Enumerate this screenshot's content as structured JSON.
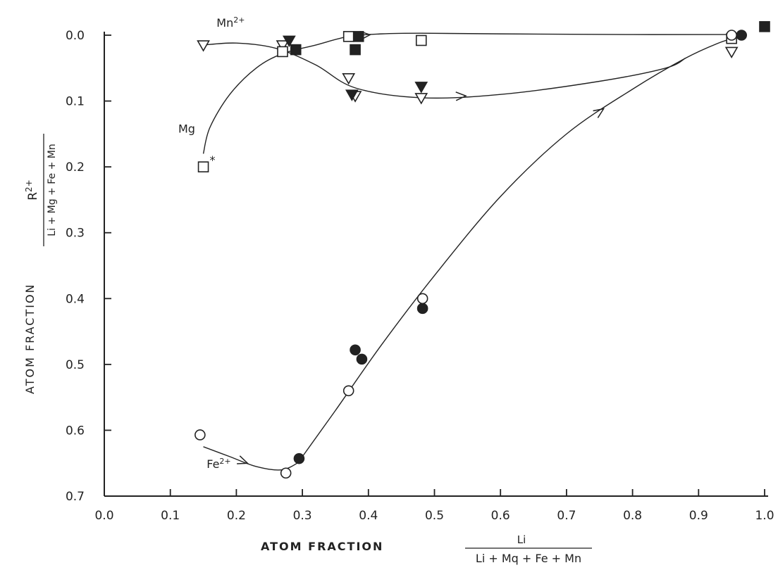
{
  "chart_data": {
    "type": "scatter",
    "title": "",
    "xlabel": {
      "prefix": "ATOM FRACTION",
      "numerator": "Li",
      "denominator": "Li + Mq + Fe + Mn"
    },
    "ylabel": {
      "outer": "ATOM FRACTION",
      "numerator": "R2+",
      "denominator": "Li + Mg + Fe + Mn"
    },
    "xlim": [
      0.0,
      1.0
    ],
    "ylim": [
      0.0,
      0.7
    ],
    "y_axis_inverted": true,
    "x_ticks": [
      "0.0",
      "0.1",
      "0.2",
      "0.3",
      "0.4",
      "0.5",
      "0.6",
      "0.7",
      "0.8",
      "0.9",
      "1.0"
    ],
    "y_ticks": [
      "0.0",
      "0.1",
      "0.2",
      "0.3",
      "0.4",
      "0.5",
      "0.6",
      "0.7"
    ],
    "grid": false,
    "series": [
      {
        "name": "Mn2+",
        "label_text": "Mn",
        "label_sup": "2+",
        "marker": "triangle-down",
        "color": "#222222",
        "open": [
          [
            0.15,
            0.015
          ],
          [
            0.27,
            0.015
          ],
          [
            0.37,
            0.065
          ],
          [
            0.38,
            0.092
          ],
          [
            0.48,
            0.095
          ],
          [
            0.95,
            0.025
          ]
        ],
        "filled": [
          [
            0.28,
            0.008
          ],
          [
            0.375,
            0.09
          ],
          [
            0.48,
            0.078
          ]
        ],
        "trend": [
          [
            0.15,
            0.015
          ],
          [
            0.2,
            0.012
          ],
          [
            0.26,
            0.02
          ],
          [
            0.32,
            0.045
          ],
          [
            0.38,
            0.08
          ],
          [
            0.48,
            0.095
          ],
          [
            0.6,
            0.09
          ],
          [
            0.75,
            0.07
          ],
          [
            0.85,
            0.05
          ],
          [
            0.88,
            0.035
          ]
        ]
      },
      {
        "name": "Mg",
        "label_text": "Mg",
        "label_sup": "",
        "marker": "square",
        "color": "#222222",
        "open": [
          [
            0.15,
            0.2
          ],
          [
            0.27,
            0.025
          ],
          [
            0.37,
            0.002
          ],
          [
            0.48,
            0.008
          ],
          [
            0.95,
            0.005
          ]
        ],
        "filled": [
          [
            0.29,
            0.022
          ],
          [
            0.38,
            0.022
          ],
          [
            0.385,
            0.002
          ],
          [
            1.0,
            -0.013
          ]
        ],
        "trend": [
          [
            0.15,
            0.18
          ],
          [
            0.16,
            0.14
          ],
          [
            0.19,
            0.09
          ],
          [
            0.23,
            0.05
          ],
          [
            0.27,
            0.028
          ],
          [
            0.32,
            0.015
          ],
          [
            0.37,
            0.002
          ],
          [
            0.42,
            -0.002
          ],
          [
            0.48,
            -0.003
          ],
          [
            0.6,
            -0.002
          ],
          [
            0.8,
            -0.001
          ],
          [
            0.95,
            -0.001
          ]
        ],
        "asterisk": [
          0.15,
          0.2
        ]
      },
      {
        "name": "Fe2+",
        "label_text": "Fe",
        "label_sup": "2+",
        "marker": "circle",
        "color": "#222222",
        "open": [
          [
            0.145,
            0.607
          ],
          [
            0.275,
            0.665
          ],
          [
            0.37,
            0.54
          ],
          [
            0.482,
            0.4
          ],
          [
            0.95,
            0.0
          ]
        ],
        "filled": [
          [
            0.295,
            0.643
          ],
          [
            0.38,
            0.478
          ],
          [
            0.39,
            0.492
          ],
          [
            0.482,
            0.415
          ],
          [
            0.965,
            0.0
          ]
        ],
        "trend_start": [
          [
            0.15,
            0.625
          ],
          [
            0.19,
            0.64
          ],
          [
            0.23,
            0.655
          ],
          [
            0.27,
            0.66
          ],
          [
            0.3,
            0.645
          ]
        ],
        "trend": [
          [
            0.3,
            0.64
          ],
          [
            0.35,
            0.57
          ],
          [
            0.42,
            0.47
          ],
          [
            0.5,
            0.365
          ],
          [
            0.6,
            0.245
          ],
          [
            0.7,
            0.15
          ],
          [
            0.8,
            0.082
          ],
          [
            0.88,
            0.035
          ],
          [
            0.93,
            0.012
          ],
          [
            0.96,
            0.003
          ]
        ]
      }
    ]
  }
}
